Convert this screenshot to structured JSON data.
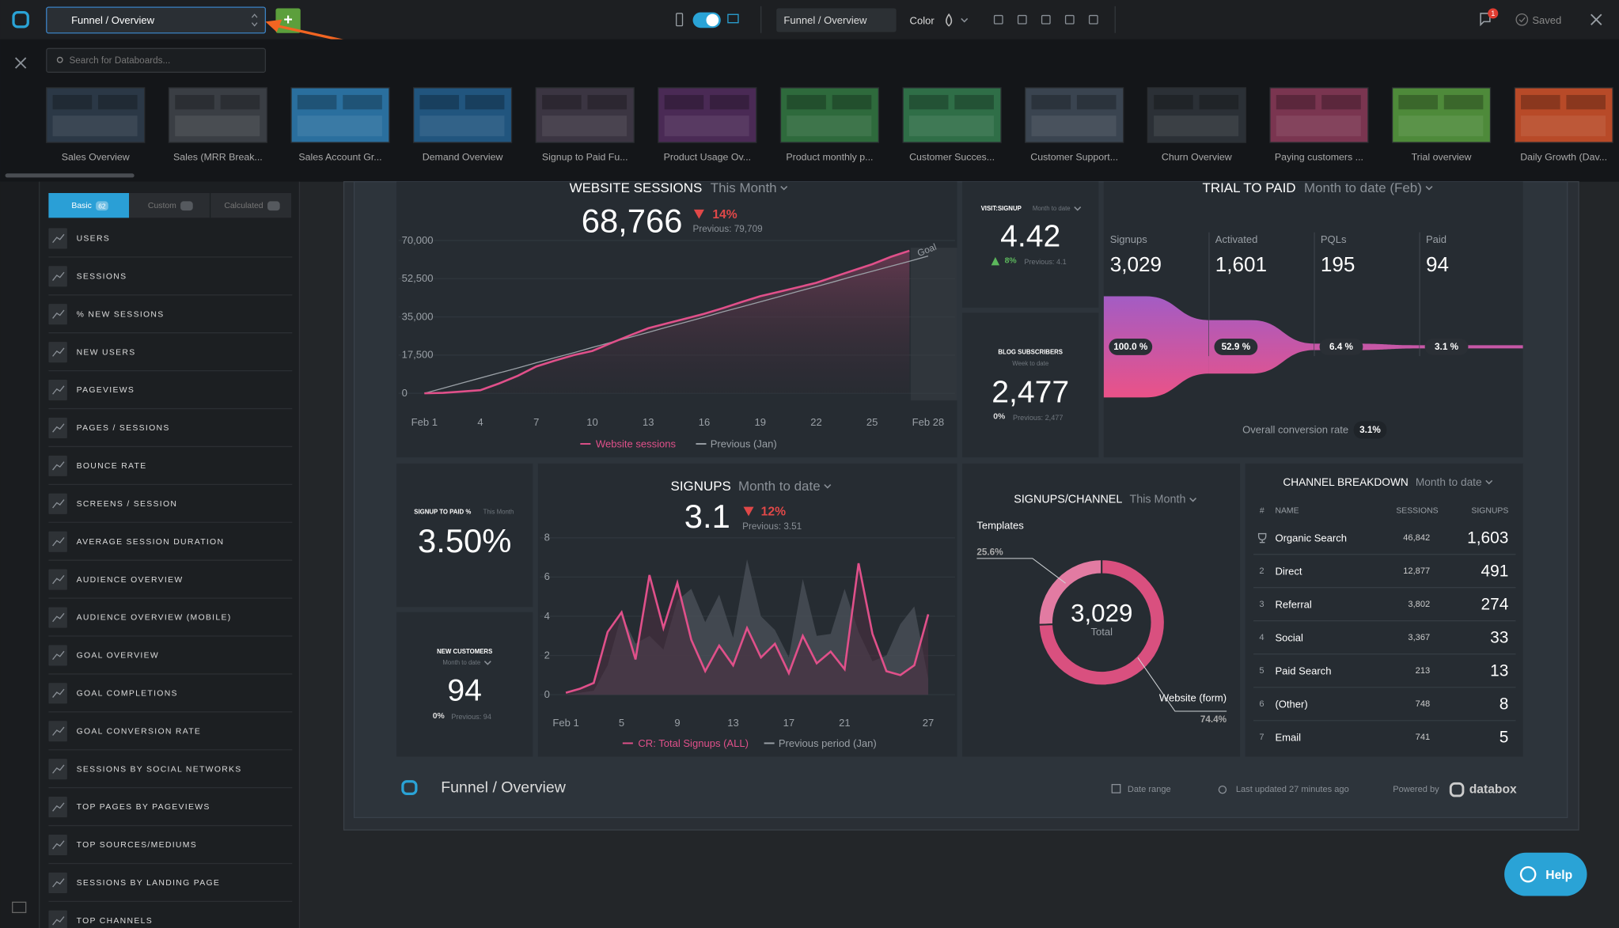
{
  "topbar": {
    "dashboard_select": "Funnel / Overview",
    "add_button": "+",
    "name_field": "Funnel / Overview",
    "color_label": "Color",
    "notifications": 1,
    "status": "Saved"
  },
  "template_panel": {
    "search_placeholder": "Search for Databoards...",
    "templates": [
      {
        "name": "Sales Overview",
        "color": "#2b3846"
      },
      {
        "name": "Sales (MRR Break...",
        "color": "#3a3e44"
      },
      {
        "name": "Sales Account Gr...",
        "color": "#2a6f9e"
      },
      {
        "name": "Demand Overview",
        "color": "#21557e"
      },
      {
        "name": "Signup to Paid Fu...",
        "color": "#3b3542"
      },
      {
        "name": "Product Usage Ov...",
        "color": "#4a2a55"
      },
      {
        "name": "Product monthly p...",
        "color": "#2e6a3c"
      },
      {
        "name": "Customer Succes...",
        "color": "#2f6e47"
      },
      {
        "name": "Customer Support...",
        "color": "#3a4450"
      },
      {
        "name": "Churn Overview",
        "color": "#2b3036"
      },
      {
        "name": "Paying customers ...",
        "color": "#7a3550"
      },
      {
        "name": "Trial overview",
        "color": "#4e8a3a"
      },
      {
        "name": "Daily Growth (Dav...",
        "color": "#b84a28"
      }
    ]
  },
  "sidebar": {
    "tabs": [
      {
        "label": "Basic",
        "count": 62
      },
      {
        "label": "Custom"
      },
      {
        "label": "Calculated"
      }
    ],
    "items": [
      "USERS",
      "SESSIONS",
      "% NEW SESSIONS",
      "NEW USERS",
      "PAGEVIEWS",
      "PAGES / SESSIONS",
      "BOUNCE RATE",
      "SCREENS / SESSION",
      "AVERAGE SESSION DURATION",
      "AUDIENCE OVERVIEW",
      "AUDIENCE OVERVIEW (MOBILE)",
      "GOAL OVERVIEW",
      "GOAL COMPLETIONS",
      "GOAL CONVERSION RATE",
      "SESSIONS BY SOCIAL NETWORKS",
      "TOP PAGES BY PAGEVIEWS",
      "TOP SOURCES/MEDIUMS",
      "SESSIONS BY LANDING PAGE",
      "TOP CHANNELS"
    ]
  },
  "website_sessions": {
    "title": "WEBSITE SESSIONS",
    "period": "This Month",
    "value": "68,766",
    "change": "14%",
    "previous": "Previous: 79,709",
    "categories": [
      "Feb 1",
      null,
      null,
      "4",
      null,
      null,
      "7",
      null,
      null,
      "10",
      null,
      null,
      "13",
      null,
      null,
      "16",
      null,
      null,
      "19",
      null,
      null,
      "22",
      null,
      null,
      "25",
      null,
      null,
      "Feb 28"
    ],
    "ylim": [
      0,
      74000
    ],
    "yticks": [
      0,
      {
        "value": 17500,
        "label": "17,500"
      },
      {
        "value": 35000,
        "label": "35,000"
      },
      {
        "value": 52500,
        "label": "52,500"
      },
      {
        "value": 70000,
        "label": "70,000"
      }
    ],
    "series": [
      {
        "name": "Website sessions",
        "color": "#e0508a",
        "values": [
          0,
          200,
          800,
          1400,
          4500,
          8000,
          12300,
          15000,
          17500,
          19400,
          23000,
          26500,
          29800,
          32000,
          34200,
          36400,
          39000,
          41800,
          44500,
          46500,
          48500,
          50600,
          53500,
          56300,
          59100,
          62500,
          65300,
          null
        ]
      },
      {
        "name": "Previous (Jan)",
        "color": "#9aa0a6",
        "values": [
          0,
          2300,
          4700,
          7000,
          9300,
          11600,
          14000,
          16300,
          18600,
          21000,
          23300,
          25600,
          27900,
          30300,
          32600,
          34900,
          37300,
          39600,
          41900,
          44200,
          46600,
          48900,
          51200,
          53600,
          55900,
          58200,
          60500,
          62900
        ]
      }
    ],
    "annotation": "Goal"
  },
  "visit_signup": {
    "title": "VISIT:SIGNUP",
    "period": "Month to date",
    "value": "4.42",
    "change": "8%",
    "previous": "Previous: 4.1"
  },
  "blog_subscribers": {
    "title": "BLOG SUBSCRIBERS",
    "period": "Week to date",
    "value": "2,477",
    "change": "0%",
    "previous": "Previous: 2,477"
  },
  "trial_to_paid": {
    "title": "TRIAL TO PAID",
    "period": "Month to date (Feb)",
    "stages": [
      {
        "name": "Signups",
        "count": "3,029",
        "percent": 100,
        "percent_label": "100.0 %"
      },
      {
        "name": "Activated",
        "count": "1,601",
        "percent": 52.9,
        "percent_label": "52.9 %"
      },
      {
        "name": "PQLs",
        "count": 195,
        "percent": 6.4,
        "percent_label": "6.4 %"
      },
      {
        "name": "Paid",
        "count": 94,
        "percent": 3.1,
        "percent_label": "3.1 %"
      }
    ],
    "overall_label": "Overall conversion rate",
    "overall_value": "3.1%"
  },
  "signup_to_paid": {
    "title": "SIGNUP TO PAID %",
    "period": "This Month",
    "value": "3.50%"
  },
  "new_customers": {
    "title": "NEW CUSTOMERS",
    "period": "Month to date",
    "value": 94,
    "change": "0%",
    "previous": "Previous: 94"
  },
  "signups": {
    "title": "SIGNUPS",
    "period": "Month to date",
    "value": "3.1",
    "change": "12%",
    "previous": "Previous: 3.51",
    "categories": [
      "Feb 1",
      null,
      null,
      null,
      "5",
      null,
      null,
      null,
      "9",
      null,
      null,
      null,
      "13",
      null,
      null,
      null,
      "17",
      null,
      null,
      null,
      "21",
      null,
      null,
      null,
      null,
      null,
      "27"
    ],
    "ylim": [
      0,
      9
    ],
    "yticks": [
      0,
      2,
      4,
      6,
      8
    ],
    "series": [
      {
        "name": "CR: Total Signups (ALL)",
        "color": "#e0508a",
        "values": [
          0.1,
          0.3,
          0.6,
          3.2,
          4.2,
          1.8,
          6.1,
          3.4,
          5.7,
          2.8,
          1.2,
          2.5,
          1.5,
          3.4,
          1.9,
          2.6,
          1.1,
          3.0,
          1.6,
          2.2,
          1.3,
          6.7,
          3.1,
          1.2,
          1.0,
          1.5,
          4.1
        ]
      },
      {
        "name": "Previous period (Jan)",
        "color": "#4a5057",
        "values": [
          0.0,
          0.1,
          0.2,
          1.5,
          4.1,
          2.6,
          3.0,
          2.3,
          4.8,
          5.4,
          3.7,
          5.1,
          2.9,
          6.9,
          4.0,
          3.3,
          1.9,
          5.9,
          3.0,
          3.1,
          5.4,
          3.2,
          1.7,
          2.0,
          3.6,
          4.5,
          0.8
        ]
      }
    ]
  },
  "signups_channel": {
    "title": "SIGNUPS/CHANNEL",
    "period": "This Month",
    "total": "3,029",
    "total_label": "Total",
    "segments": [
      {
        "name": "Templates",
        "value": 25.6,
        "value_label": "25.6%",
        "color": "#e27ba2"
      },
      {
        "name": "Website (form)",
        "value": 74.4,
        "value_label": "74.4%",
        "color": "#d9507f"
      }
    ]
  },
  "channel_breakdown": {
    "title": "CHANNEL BREAKDOWN",
    "period": "Month to date",
    "columns": [
      "#",
      "NAME",
      "SESSIONS",
      "SIGNUPS"
    ],
    "rows": [
      [
        null,
        "Organic Search",
        "46,842",
        "1,603"
      ],
      [
        2,
        "Direct",
        "12,877",
        491
      ],
      [
        3,
        "Referral",
        "3,802",
        274
      ],
      [
        4,
        "Social",
        "3,367",
        33
      ],
      [
        5,
        "Paid Search",
        213,
        13
      ],
      [
        6,
        "(Other)",
        748,
        8
      ],
      [
        7,
        "Email",
        741,
        5
      ]
    ]
  },
  "footer": {
    "title": "Funnel / Overview",
    "date_range": "Date range",
    "last_updated": "Last updated 27 minutes ago",
    "powered_by": "Powered by",
    "brand": "databox"
  },
  "help_button": "Help"
}
